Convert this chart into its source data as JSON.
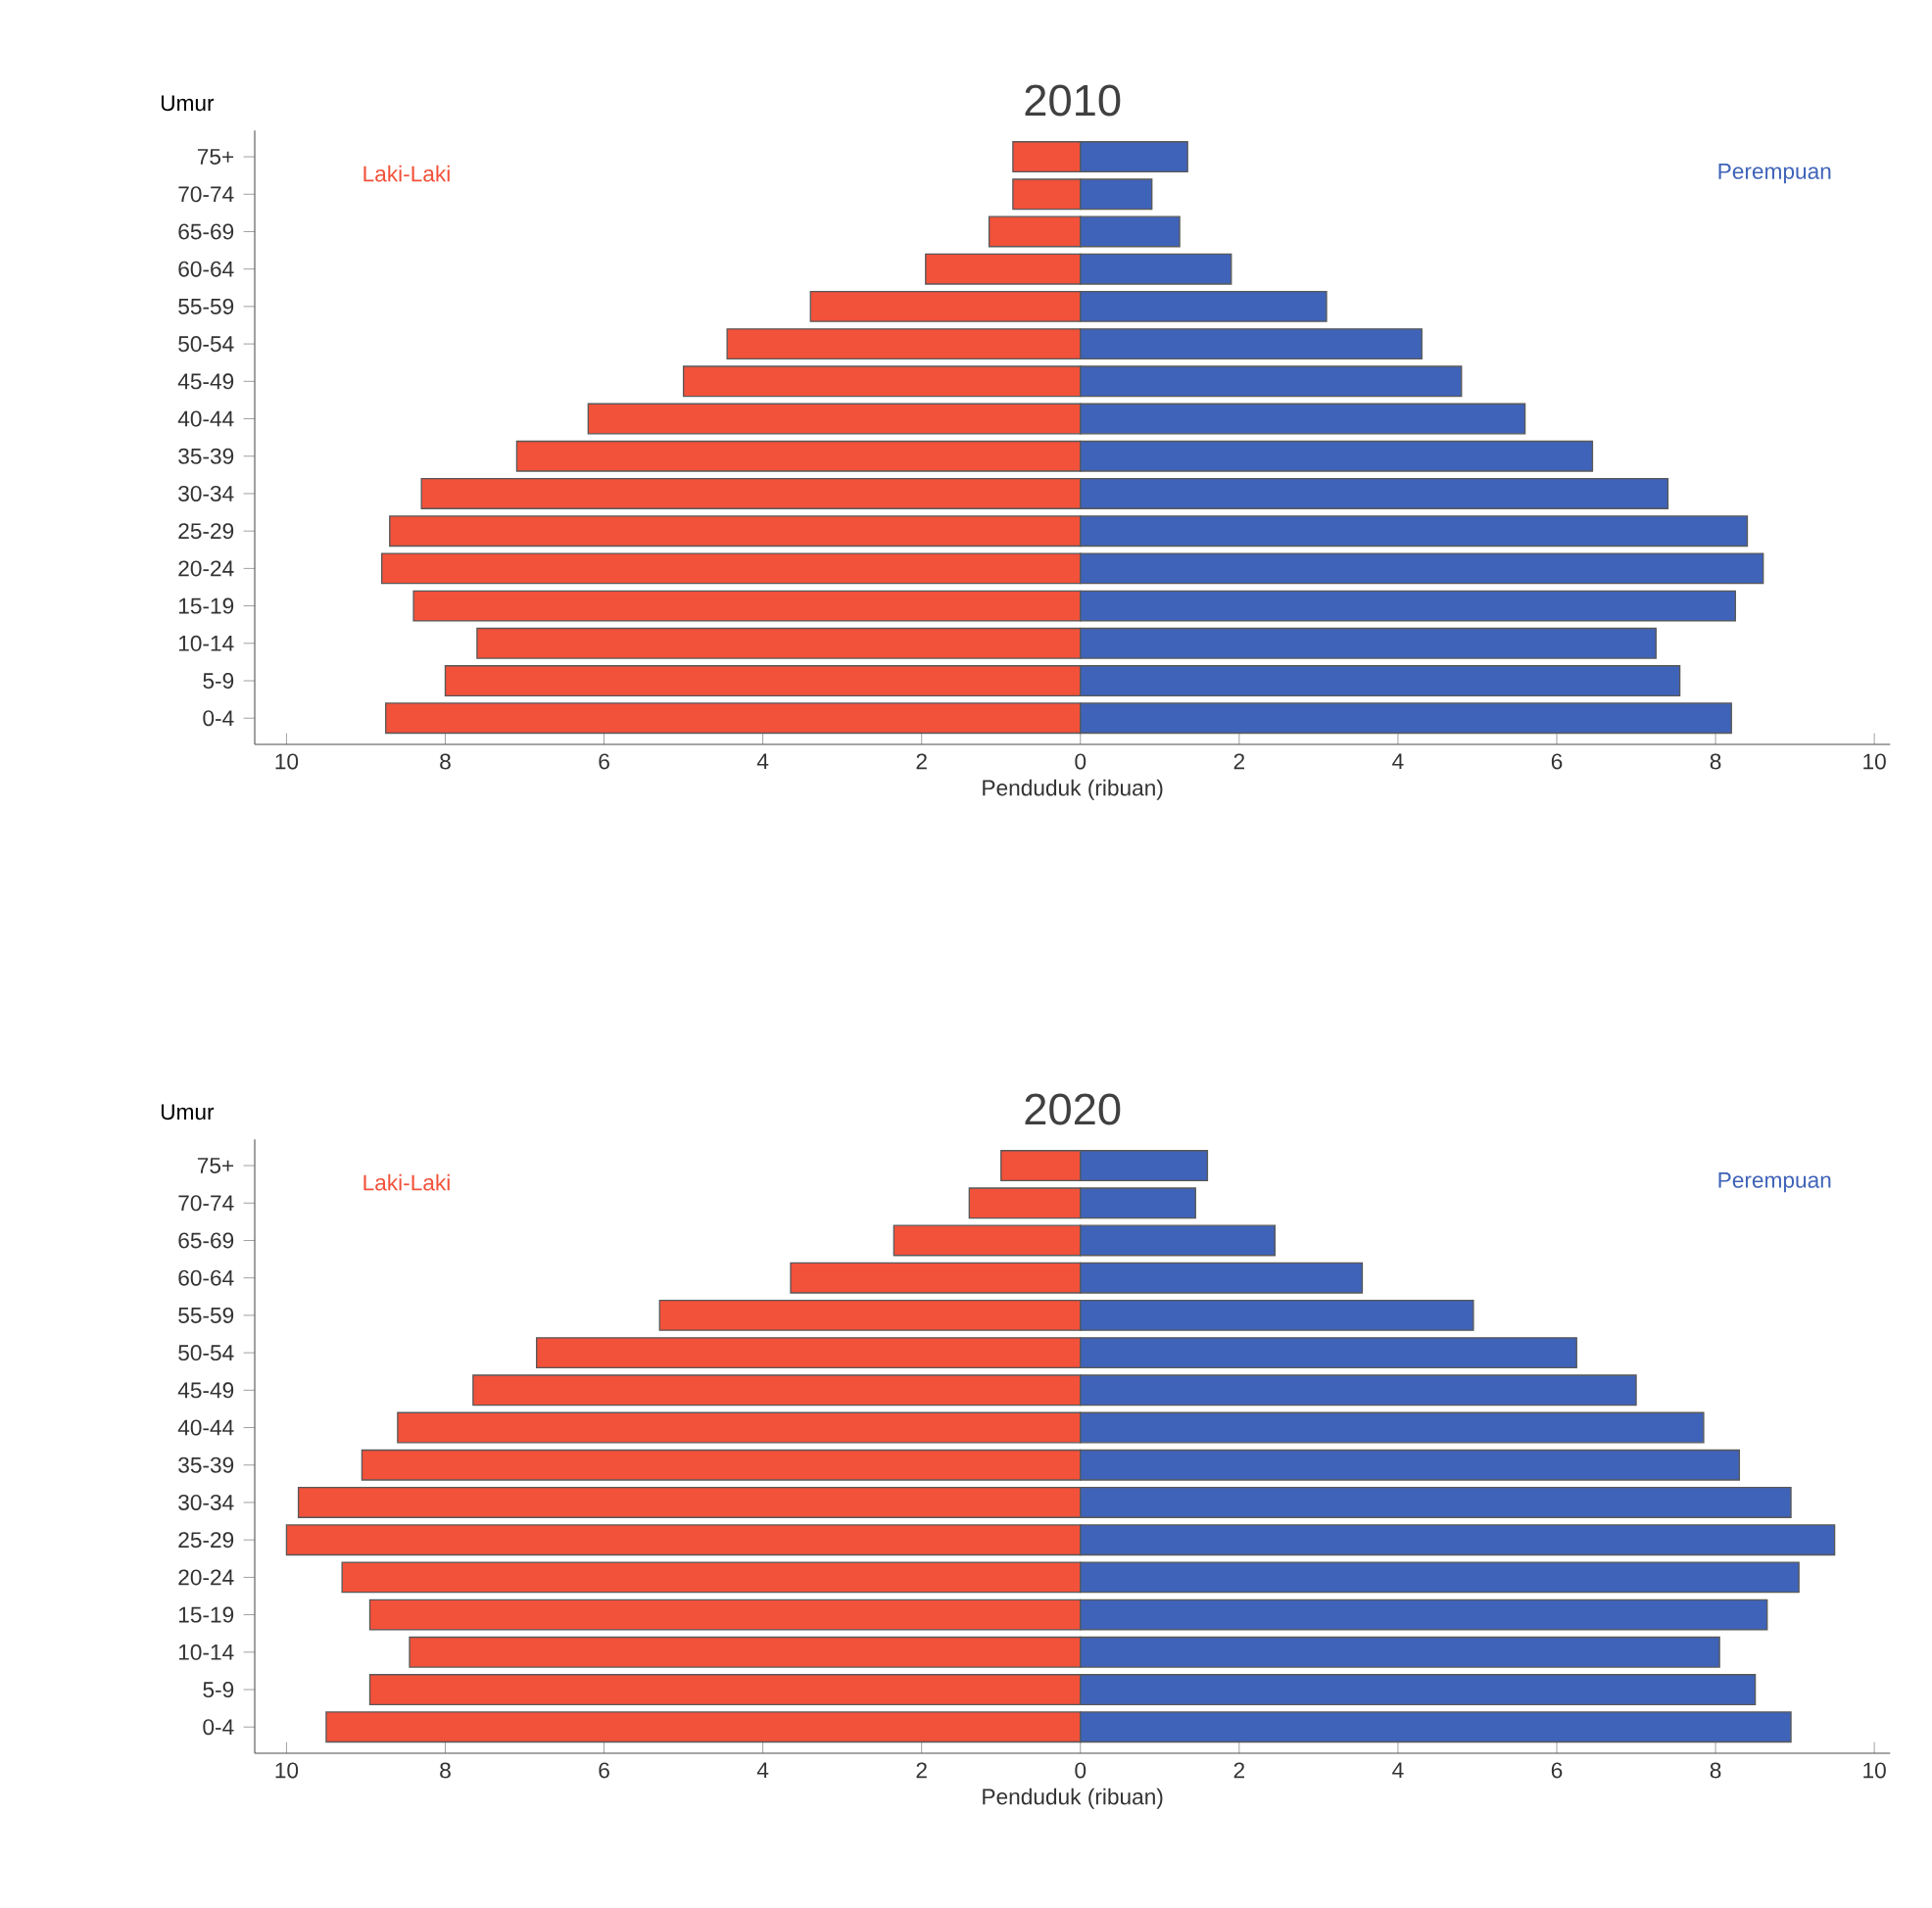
{
  "chart_data": [
    {
      "type": "bar",
      "orientation": "horizontal",
      "stacked": true,
      "title": "2010",
      "xlabel": "Penduduk (ribuan)",
      "ylabel": "Umur",
      "categories": [
        "75+",
        "70-74",
        "65-69",
        "60-64",
        "55-59",
        "50-54",
        "45-49",
        "40-44",
        "35-39",
        "30-34",
        "25-29",
        "20-24",
        "15-19",
        "10-14",
        "5-9",
        "0-4"
      ],
      "series": [
        {
          "name": "Laki-Laki",
          "color": "#f2513a",
          "values": [
            -0.85,
            -0.85,
            -1.15,
            -1.95,
            -3.4,
            -4.45,
            -5.0,
            -6.2,
            -7.1,
            -8.3,
            -8.7,
            -8.8,
            -8.4,
            -7.6,
            -8.0,
            -8.75
          ]
        },
        {
          "name": "Perempuan",
          "color": "#3f63b8",
          "values": [
            1.35,
            0.9,
            1.25,
            1.9,
            3.1,
            4.3,
            4.8,
            5.6,
            6.45,
            7.4,
            8.4,
            8.6,
            8.25,
            7.25,
            7.55,
            8.2
          ]
        }
      ],
      "xlim": [
        -10.4,
        10.2
      ],
      "xticks": [
        {
          "value": -10,
          "label": "10"
        },
        {
          "value": -8,
          "label": "8"
        },
        {
          "value": -6,
          "label": "6"
        },
        {
          "value": -4,
          "label": "4"
        },
        {
          "value": -2,
          "label": "2"
        },
        0,
        2,
        4,
        6,
        8,
        10
      ]
    },
    {
      "type": "bar",
      "orientation": "horizontal",
      "stacked": true,
      "title": "2020",
      "xlabel": "Penduduk (ribuan)",
      "ylabel": "Umur",
      "categories": [
        "75+",
        "70-74",
        "65-69",
        "60-64",
        "55-59",
        "50-54",
        "45-49",
        "40-44",
        "35-39",
        "30-34",
        "25-29",
        "20-24",
        "15-19",
        "10-14",
        "5-9",
        "0-4"
      ],
      "series": [
        {
          "name": "Laki-Laki",
          "color": "#f2513a",
          "values": [
            -1.0,
            -1.4,
            -2.35,
            -3.65,
            -5.3,
            -6.85,
            -7.65,
            -8.6,
            -9.05,
            -9.85,
            -10.0,
            -9.3,
            -8.95,
            -8.45,
            -8.95,
            -9.5
          ]
        },
        {
          "name": "Perempuan",
          "color": "#3f63b8",
          "values": [
            1.6,
            1.45,
            2.45,
            3.55,
            4.95,
            6.25,
            7.0,
            7.85,
            8.3,
            8.95,
            9.5,
            9.05,
            8.65,
            8.05,
            8.5,
            8.95
          ]
        }
      ],
      "xlim": [
        -10.4,
        10.2
      ],
      "xticks": [
        {
          "value": -10,
          "label": "10"
        },
        {
          "value": -8,
          "label": "8"
        },
        {
          "value": -6,
          "label": "6"
        },
        {
          "value": -4,
          "label": "4"
        },
        {
          "value": -2,
          "label": "2"
        },
        0,
        2,
        4,
        6,
        8,
        10
      ]
    }
  ]
}
